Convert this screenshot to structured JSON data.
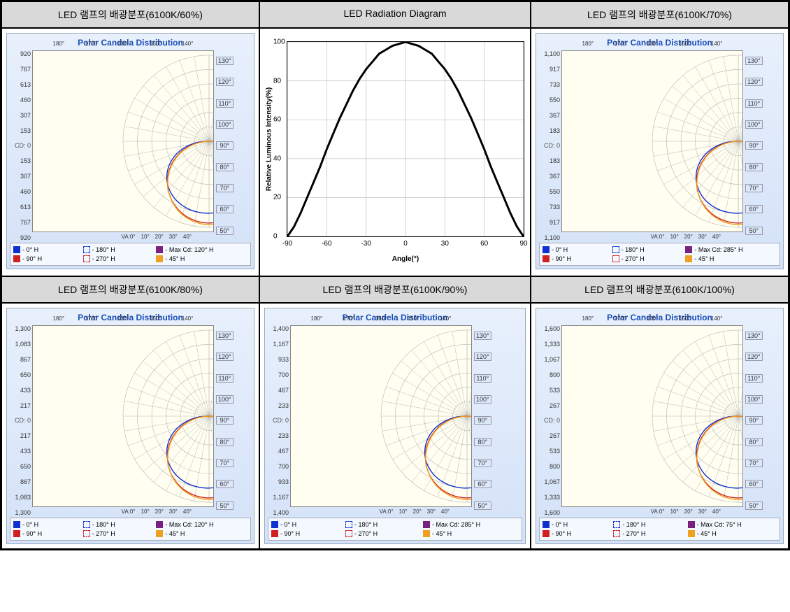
{
  "grid_border_color": "#000000",
  "header_bg": "#d9d9d9",
  "panels": [
    {
      "id": "p60",
      "header": "LED 램프의 배광분포(6100K/60%)",
      "chart": {
        "title": "Polar Candela Distribution",
        "yticks_up": [
          920,
          767,
          613,
          460,
          307,
          153
        ],
        "yticks_dn": [
          153,
          307,
          460,
          613,
          767,
          920
        ],
        "top_deg": [
          "180°",
          "170°",
          "160°",
          "150°",
          "140°"
        ],
        "right_deg": [
          "130°",
          "120°",
          "110°",
          "100°",
          "90°",
          "80°",
          "70°",
          "60°",
          "50°"
        ],
        "bot_deg_label": "VA:0°",
        "bot_deg": [
          "10°",
          "20°",
          "30°",
          "40°"
        ],
        "cd_label": "CD: 0",
        "bg_color": "#fffef0",
        "grid_color": "#b8b8b8",
        "legend": [
          {
            "label": "- 0° H",
            "color": "#1030d0",
            "dashed": false
          },
          {
            "label": "- 180° H",
            "color": "#1030d0",
            "dashed": true
          },
          {
            "label": "- Max Cd: 120° H",
            "color": "#7a2080",
            "dashed": false
          },
          {
            "label": "- 90° H",
            "color": "#d02020",
            "dashed": false
          },
          {
            "label": "- 270° H",
            "color": "#d02020",
            "dashed": true
          },
          {
            "label": "- 45° H",
            "color": "#f0a020",
            "dashed": false
          }
        ]
      }
    },
    {
      "id": "rad",
      "header": "LED Radiation Diagram",
      "radiation": {
        "ylabel": "Relative Luminous Intensity(%)",
        "xlabel": "Angle(°)",
        "xlim": [
          -90,
          90
        ],
        "ylim": [
          0,
          100
        ],
        "xticks": [
          -90,
          -60,
          -30,
          0,
          30,
          60,
          90
        ],
        "yticks": [
          0,
          20,
          40,
          60,
          80,
          100
        ],
        "grid_color": "#c0c0c0",
        "line_color": "#000000",
        "line_width": 3,
        "points": [
          [
            -90,
            0
          ],
          [
            -85,
            5
          ],
          [
            -80,
            12
          ],
          [
            -75,
            20
          ],
          [
            -70,
            28
          ],
          [
            -65,
            36
          ],
          [
            -60,
            45
          ],
          [
            -55,
            53
          ],
          [
            -50,
            61
          ],
          [
            -45,
            68
          ],
          [
            -40,
            75
          ],
          [
            -35,
            81
          ],
          [
            -30,
            86
          ],
          [
            -25,
            90
          ],
          [
            -20,
            94
          ],
          [
            -15,
            96
          ],
          [
            -10,
            98
          ],
          [
            -5,
            99
          ],
          [
            0,
            100
          ],
          [
            5,
            99
          ],
          [
            10,
            98
          ],
          [
            15,
            96
          ],
          [
            20,
            94
          ],
          [
            25,
            90
          ],
          [
            30,
            86
          ],
          [
            35,
            81
          ],
          [
            40,
            75
          ],
          [
            45,
            68
          ],
          [
            50,
            61
          ],
          [
            55,
            53
          ],
          [
            60,
            45
          ],
          [
            65,
            36
          ],
          [
            70,
            28
          ],
          [
            75,
            20
          ],
          [
            80,
            12
          ],
          [
            85,
            5
          ],
          [
            90,
            0
          ]
        ]
      }
    },
    {
      "id": "p70",
      "header": "LED 램프의 배광분포(6100K/70%)",
      "chart": {
        "title": "Polar Candela Distribution",
        "yticks_up": [
          1100,
          917,
          733,
          550,
          367,
          183
        ],
        "yticks_dn": [
          183,
          367,
          550,
          733,
          917,
          1100
        ],
        "top_deg": [
          "180°",
          "170°",
          "160°",
          "150°",
          "140°"
        ],
        "right_deg": [
          "130°",
          "120°",
          "110°",
          "100°",
          "90°",
          "80°",
          "70°",
          "60°",
          "50°"
        ],
        "bot_deg_label": "VA:0°",
        "bot_deg": [
          "10°",
          "20°",
          "30°",
          "40°"
        ],
        "cd_label": "CD: 0",
        "bg_color": "#fffef0",
        "grid_color": "#b8b8b8",
        "legend": [
          {
            "label": "- 0° H",
            "color": "#1030d0",
            "dashed": false
          },
          {
            "label": "- 180° H",
            "color": "#1030d0",
            "dashed": true
          },
          {
            "label": "- Max Cd: 285° H",
            "color": "#7a2080",
            "dashed": false
          },
          {
            "label": "- 90° H",
            "color": "#d02020",
            "dashed": false
          },
          {
            "label": "- 270° H",
            "color": "#d02020",
            "dashed": true
          },
          {
            "label": "- 45° H",
            "color": "#f0a020",
            "dashed": false
          }
        ]
      }
    },
    {
      "id": "p80",
      "header": "LED 램프의 배광분포(6100K/80%)",
      "chart": {
        "title": "Polar Candela Distribution",
        "yticks_up": [
          1300,
          1083,
          867,
          650,
          433,
          217
        ],
        "yticks_dn": [
          217,
          433,
          650,
          867,
          1083,
          1300
        ],
        "top_deg": [
          "180°",
          "170°",
          "160°",
          "150°",
          "140°"
        ],
        "right_deg": [
          "130°",
          "120°",
          "110°",
          "100°",
          "90°",
          "80°",
          "70°",
          "60°",
          "50°"
        ],
        "bot_deg_label": "VA:0°",
        "bot_deg": [
          "10°",
          "20°",
          "30°",
          "40°"
        ],
        "cd_label": "CD: 0",
        "bg_color": "#fffef0",
        "grid_color": "#b8b8b8",
        "legend": [
          {
            "label": "- 0° H",
            "color": "#1030d0",
            "dashed": false
          },
          {
            "label": "- 180° H",
            "color": "#1030d0",
            "dashed": true
          },
          {
            "label": "- Max Cd: 120° H",
            "color": "#7a2080",
            "dashed": false
          },
          {
            "label": "- 90° H",
            "color": "#d02020",
            "dashed": false
          },
          {
            "label": "- 270° H",
            "color": "#d02020",
            "dashed": true
          },
          {
            "label": "- 45° H",
            "color": "#f0a020",
            "dashed": false
          }
        ]
      }
    },
    {
      "id": "p90",
      "header": "LED 램프의 배광분포(6100K/90%)",
      "chart": {
        "title": "Polar Candela Distribution",
        "yticks_up": [
          1400,
          1167,
          933,
          700,
          467,
          233
        ],
        "yticks_dn": [
          233,
          467,
          700,
          933,
          1167,
          1400
        ],
        "top_deg": [
          "180°",
          "170°",
          "160°",
          "150°",
          "140°"
        ],
        "right_deg": [
          "130°",
          "120°",
          "110°",
          "100°",
          "90°",
          "80°",
          "70°",
          "60°",
          "50°"
        ],
        "bot_deg_label": "VA:0°",
        "bot_deg": [
          "10°",
          "20°",
          "30°",
          "40°"
        ],
        "cd_label": "CD: 0",
        "bg_color": "#fffef0",
        "grid_color": "#b8b8b8",
        "legend": [
          {
            "label": "- 0° H",
            "color": "#1030d0",
            "dashed": false
          },
          {
            "label": "- 180° H",
            "color": "#1030d0",
            "dashed": true
          },
          {
            "label": "- Max Cd: 285° H",
            "color": "#7a2080",
            "dashed": false
          },
          {
            "label": "- 90° H",
            "color": "#d02020",
            "dashed": false
          },
          {
            "label": "- 270° H",
            "color": "#d02020",
            "dashed": true
          },
          {
            "label": "- 45° H",
            "color": "#f0a020",
            "dashed": false
          }
        ]
      }
    },
    {
      "id": "p100",
      "header": "LED 램프의 배광분포(6100K/100%)",
      "chart": {
        "title": "Polar Candela Distribution",
        "yticks_up": [
          1600,
          1333,
          1067,
          800,
          533,
          267
        ],
        "yticks_dn": [
          267,
          533,
          800,
          1067,
          1333,
          1600
        ],
        "top_deg": [
          "180°",
          "170°",
          "160°",
          "150°",
          "140°"
        ],
        "right_deg": [
          "130°",
          "120°",
          "110°",
          "100°",
          "90°",
          "80°",
          "70°",
          "60°",
          "50°"
        ],
        "bot_deg_label": "VA:0°",
        "bot_deg": [
          "10°",
          "20°",
          "30°",
          "40°"
        ],
        "cd_label": "CD: 0",
        "bg_color": "#fffef0",
        "grid_color": "#b8b8b8",
        "legend": [
          {
            "label": "- 0° H",
            "color": "#1030d0",
            "dashed": false
          },
          {
            "label": "- 180° H",
            "color": "#1030d0",
            "dashed": true
          },
          {
            "label": "- Max Cd: 75° H",
            "color": "#7a2080",
            "dashed": false
          },
          {
            "label": "- 90° H",
            "color": "#d02020",
            "dashed": false
          },
          {
            "label": "- 270° H",
            "color": "#d02020",
            "dashed": true
          },
          {
            "label": "- 45° H",
            "color": "#f0a020",
            "dashed": false
          }
        ]
      }
    }
  ],
  "polar_curve_colors": {
    "blue": "#1030d0",
    "red": "#d02020",
    "orange": "#f0a020"
  }
}
